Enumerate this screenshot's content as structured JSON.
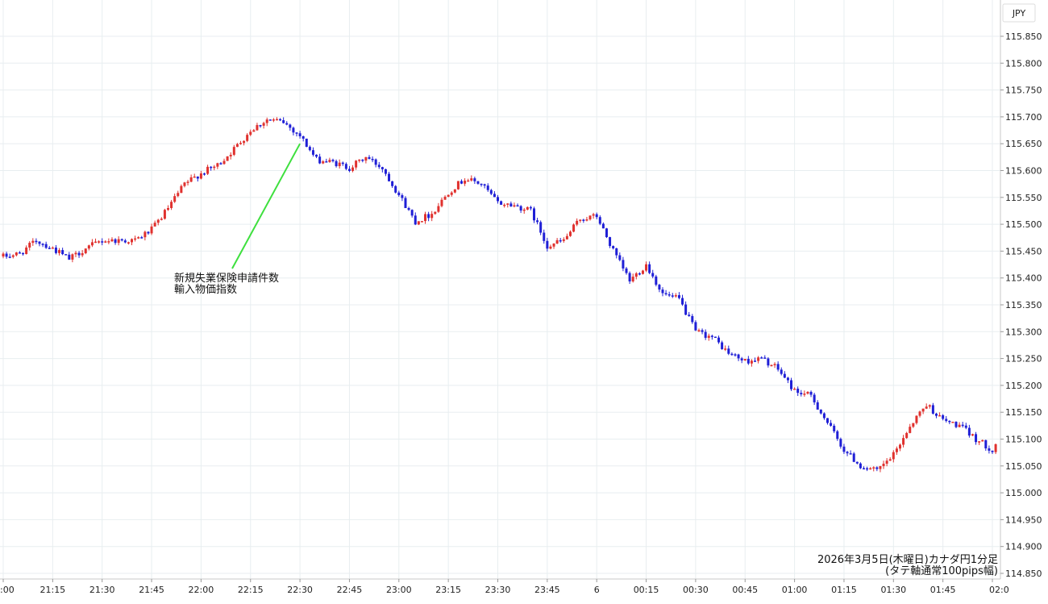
{
  "chart_data": {
    "type": "candlestick",
    "currency": "JPY",
    "caption_line1": "2026年3月5日(木曜日)カナダ円1分足",
    "caption_line2": "(タテ軸通常100pips幅)",
    "annotation": {
      "line1": "新規失業保険申請件数",
      "line2": "輸入物価指数",
      "time": "22:30",
      "price": 115.65
    },
    "colors": {
      "up": "#e0312e",
      "down": "#1f1fd6",
      "grid": "#e8eef0",
      "annotation_line": "#3ee03e"
    },
    "ylim": [
      114.85,
      115.87
    ],
    "y_ticks": [
      "115.850",
      "115.800",
      "115.750",
      "115.700",
      "115.650",
      "115.600",
      "115.550",
      "115.500",
      "115.450",
      "115.400",
      "115.350",
      "115.300",
      "115.250",
      "115.200",
      "115.150",
      "115.100",
      "115.050",
      "115.000",
      "114.950",
      "114.900",
      "114.850"
    ],
    "x_ticks": [
      ":00",
      "21:15",
      "21:30",
      "21:45",
      "22:00",
      "22:15",
      "22:30",
      "22:45",
      "23:00",
      "23:15",
      "23:30",
      "23:45",
      "6",
      "00:15",
      "00:30",
      "00:45",
      "01:00",
      "01:15",
      "01:30",
      "01:45",
      "02:0"
    ],
    "grid": true,
    "close_path": [
      [
        "21:00",
        115.44
      ],
      [
        "21:05",
        115.445
      ],
      [
        "21:10",
        115.47
      ],
      [
        "21:15",
        115.455
      ],
      [
        "21:20",
        115.435
      ],
      [
        "21:25",
        115.455
      ],
      [
        "21:30",
        115.47
      ],
      [
        "21:35",
        115.47
      ],
      [
        "21:40",
        115.47
      ],
      [
        "21:45",
        115.49
      ],
      [
        "21:50",
        115.53
      ],
      [
        "21:55",
        115.575
      ],
      [
        "22:00",
        115.595
      ],
      [
        "22:05",
        115.61
      ],
      [
        "22:10",
        115.64
      ],
      [
        "22:15",
        115.675
      ],
      [
        "22:20",
        115.695
      ],
      [
        "22:25",
        115.69
      ],
      [
        "22:30",
        115.665
      ],
      [
        "22:35",
        115.62
      ],
      [
        "22:40",
        115.615
      ],
      [
        "22:45",
        115.605
      ],
      [
        "22:50",
        115.625
      ],
      [
        "22:55",
        115.605
      ],
      [
        "23:00",
        115.555
      ],
      [
        "23:05",
        115.505
      ],
      [
        "23:10",
        115.52
      ],
      [
        "23:15",
        115.56
      ],
      [
        "23:20",
        115.585
      ],
      [
        "23:25",
        115.575
      ],
      [
        "23:30",
        115.54
      ],
      [
        "23:35",
        115.535
      ],
      [
        "23:40",
        115.525
      ],
      [
        "23:45",
        115.46
      ],
      [
        "23:50",
        115.47
      ],
      [
        "23:55",
        115.51
      ],
      [
        "00:00",
        115.515
      ],
      [
        "00:05",
        115.45
      ],
      [
        "00:10",
        115.395
      ],
      [
        "00:15",
        115.425
      ],
      [
        "00:20",
        115.37
      ],
      [
        "00:25",
        115.36
      ],
      [
        "00:30",
        115.3
      ],
      [
        "00:35",
        115.29
      ],
      [
        "00:40",
        115.26
      ],
      [
        "00:45",
        115.245
      ],
      [
        "00:50",
        115.25
      ],
      [
        "00:55",
        115.23
      ],
      [
        "01:00",
        115.19
      ],
      [
        "01:05",
        115.18
      ],
      [
        "01:10",
        115.13
      ],
      [
        "01:15",
        115.08
      ],
      [
        "01:20",
        115.05
      ],
      [
        "01:25",
        115.04
      ],
      [
        "01:30",
        115.07
      ],
      [
        "01:35",
        115.125
      ],
      [
        "01:40",
        115.165
      ],
      [
        "01:45",
        115.135
      ],
      [
        "01:50",
        115.125
      ],
      [
        "01:55",
        115.1
      ],
      [
        "02:00",
        115.08
      ],
      [
        "02:02",
        115.1
      ]
    ]
  }
}
